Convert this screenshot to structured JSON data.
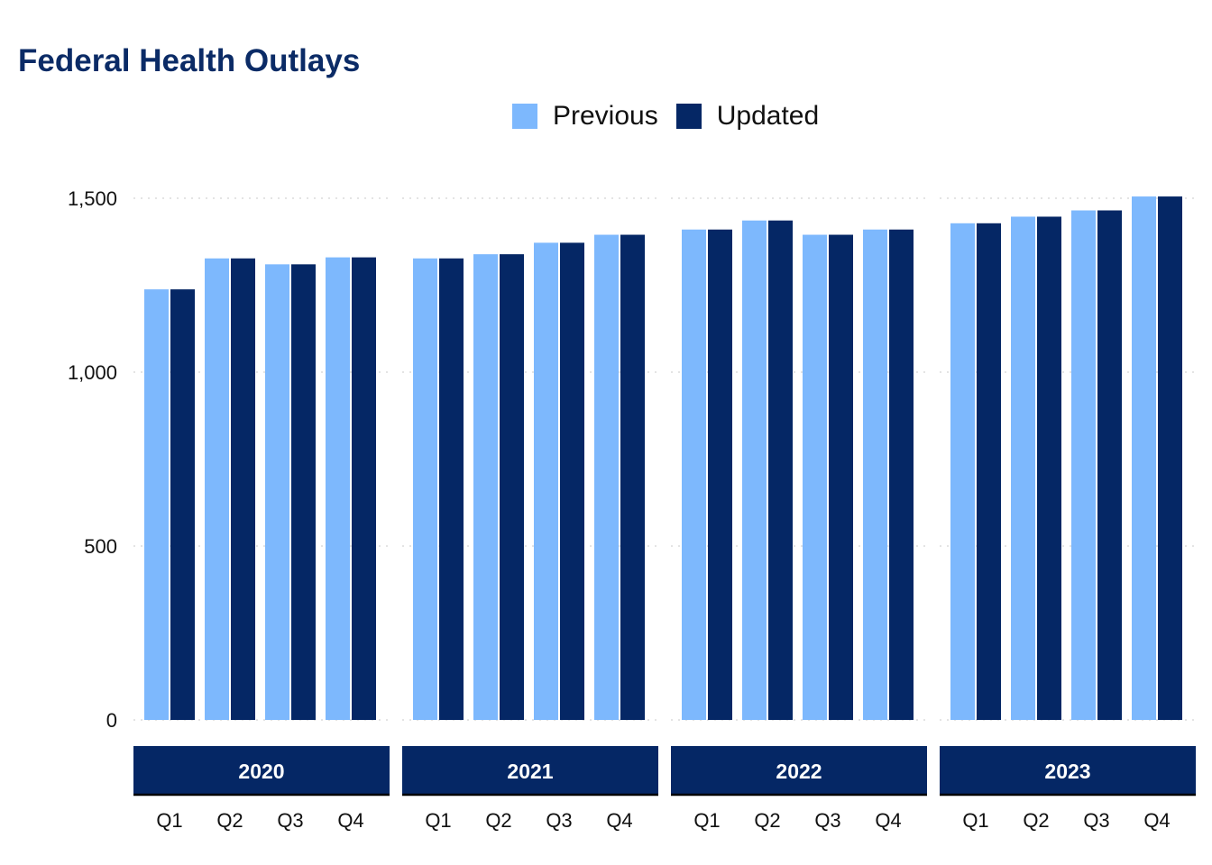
{
  "colors": {
    "previous": "#7db8fd",
    "updated": "#052765",
    "title": "#0b2b66",
    "strip": "#052765"
  },
  "chart_data": {
    "type": "bar",
    "title": "Federal Health Outlays",
    "xlabel": "",
    "ylabel": "",
    "ylim": [
      0,
      1500
    ],
    "yticks": [
      0,
      500,
      1000,
      1500
    ],
    "ytick_labels": [
      "0",
      "500",
      "1,000",
      "1,500"
    ],
    "grid": "horizontal dotted",
    "legend_position": "top",
    "facets": [
      "2020",
      "2021",
      "2022",
      "2023"
    ],
    "categories": [
      "Q1",
      "Q2",
      "Q3",
      "Q4"
    ],
    "series": [
      {
        "name": "Previous",
        "values": [
          [
            1238,
            1327,
            1310,
            1330
          ],
          [
            1327,
            1339,
            1372,
            1395
          ],
          [
            1410,
            1436,
            1395,
            1410
          ],
          [
            1428,
            1447,
            1465,
            1505
          ]
        ]
      },
      {
        "name": "Updated",
        "values": [
          [
            1238,
            1327,
            1310,
            1330
          ],
          [
            1327,
            1339,
            1372,
            1395
          ],
          [
            1410,
            1436,
            1395,
            1410
          ],
          [
            1428,
            1447,
            1465,
            1505
          ]
        ]
      }
    ]
  }
}
